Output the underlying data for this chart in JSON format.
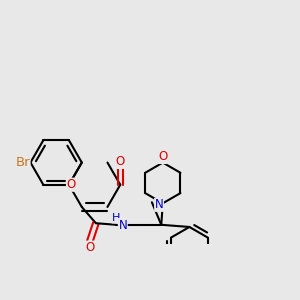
{
  "background_color": "#e8e8e8",
  "bond_color": "#000000",
  "bond_width": 1.5,
  "atom_colors": {
    "Br": "#cc7722",
    "O": "#dd0000",
    "N": "#0000cc",
    "C": "#000000",
    "H": "#000000"
  },
  "font_size": 8.5,
  "fig_width": 3.0,
  "fig_height": 3.0,
  "dpi": 100
}
